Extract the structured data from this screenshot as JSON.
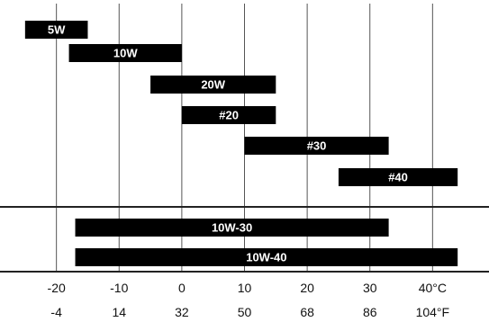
{
  "chart_data": {
    "type": "bar",
    "orientation": "horizontal-range",
    "title": "",
    "xlabel": "",
    "ylabel": "",
    "xlim": [
      -29,
      49
    ],
    "grid": "vertical",
    "single_grade": [
      {
        "name": "5W",
        "range": [
          -25,
          -15
        ]
      },
      {
        "name": "10W",
        "range": [
          -18,
          0
        ]
      },
      {
        "name": "20W",
        "range": [
          -5,
          15
        ]
      },
      {
        "name": "#20",
        "range": [
          0,
          15
        ]
      },
      {
        "name": "#30",
        "range": [
          10,
          33
        ]
      },
      {
        "name": "#40",
        "range": [
          25,
          44
        ]
      }
    ],
    "multi_grade": [
      {
        "name": "10W-30",
        "range": [
          -17,
          33
        ]
      },
      {
        "name": "10W-40",
        "range": [
          -17,
          44
        ]
      }
    ],
    "celsius_ticks": [
      {
        "value": -20,
        "label": "-20"
      },
      {
        "value": -10,
        "label": "-10"
      },
      {
        "value": 0,
        "label": "0"
      },
      {
        "value": 10,
        "label": "10"
      },
      {
        "value": 20,
        "label": "20"
      },
      {
        "value": 30,
        "label": "30"
      },
      {
        "value": 40,
        "label": "40°C"
      }
    ],
    "fahrenheit_ticks": [
      {
        "value": -20,
        "label": "-4"
      },
      {
        "value": -10,
        "label": "14"
      },
      {
        "value": 0,
        "label": "32"
      },
      {
        "value": 10,
        "label": "50"
      },
      {
        "value": 20,
        "label": "68"
      },
      {
        "value": 30,
        "label": "86"
      },
      {
        "value": 40,
        "label": "104°F"
      }
    ],
    "colors": {
      "bar": "#000000",
      "bar_text": "#ffffff",
      "grid": "#555555",
      "frame": "#222222"
    }
  }
}
